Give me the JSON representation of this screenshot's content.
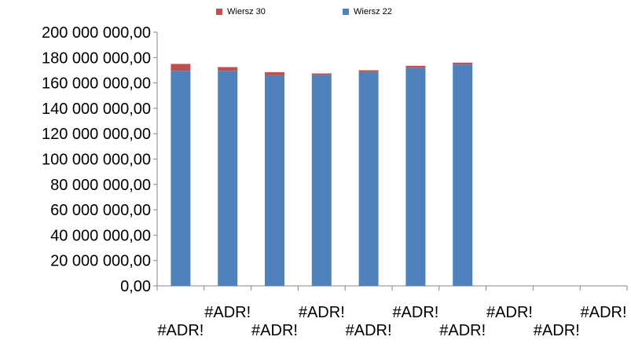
{
  "chart_data": {
    "type": "bar",
    "stacked": true,
    "categories": [
      "#ADR!",
      "#ADR!",
      "#ADR!",
      "#ADR!",
      "#ADR!",
      "#ADR!",
      "#ADR!",
      "#ADR!",
      "#ADR!",
      "#ADR!"
    ],
    "series": [
      {
        "name": "Wiersz 22",
        "color": "#4f81bd",
        "values": [
          169500000,
          169500000,
          166000000,
          166500000,
          168500000,
          172000000,
          174500000,
          null,
          null,
          null
        ]
      },
      {
        "name": "Wiersz 30",
        "color": "#c0504d",
        "values": [
          5500000,
          3000000,
          2500000,
          1000000,
          1500000,
          1500000,
          1500000,
          null,
          null,
          null
        ]
      }
    ],
    "legend_order": [
      "Wiersz 30",
      "Wiersz 22"
    ],
    "y_ticks": [
      "0,00",
      "20 000 000,00",
      "40 000 000,00",
      "60 000 000,00",
      "80 000 000,00",
      "100 000 000,00",
      "120 000 000,00",
      "140 000 000,00",
      "160 000 000,00",
      "180 000 000,00",
      "200 000 000,00"
    ],
    "ylim": [
      0,
      200000000
    ],
    "legend_position": "top",
    "grid": false
  }
}
